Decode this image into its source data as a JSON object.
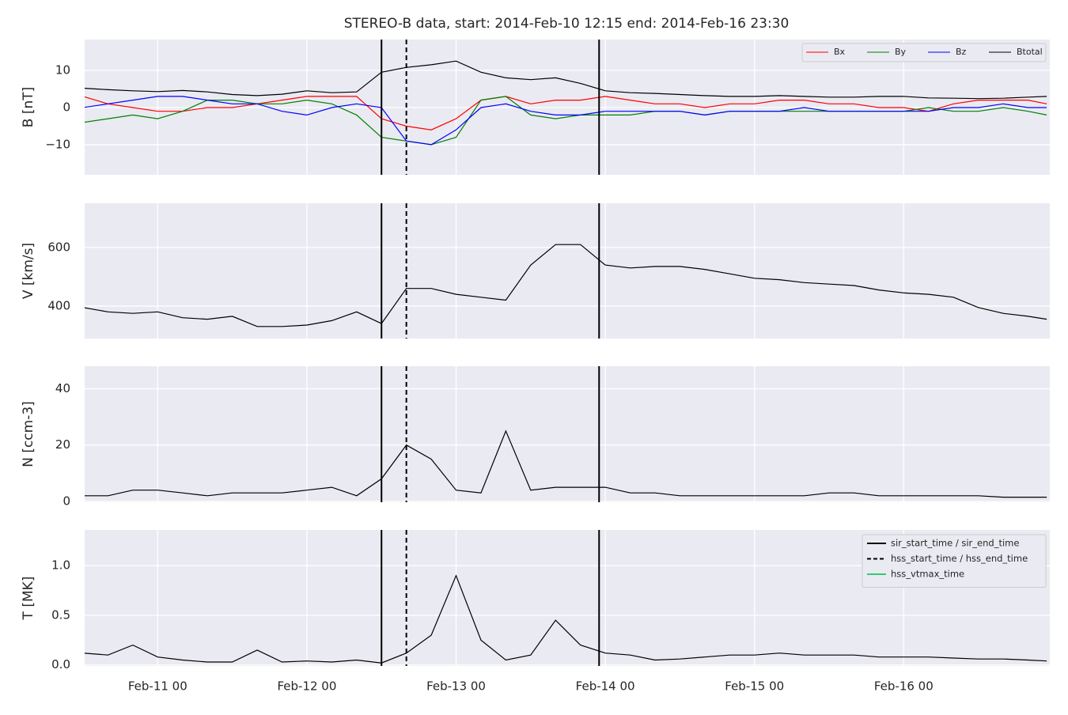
{
  "chart_data": [
    {
      "type": "line",
      "title": "STEREO-B data, start: 2014-Feb-10 12:15  end: 2014-Feb-16 23:30",
      "ylabel": "B [nT]",
      "x": [
        "Feb-10 12",
        "Feb-10 16",
        "Feb-10 20",
        "Feb-11 00",
        "Feb-11 04",
        "Feb-11 08",
        "Feb-11 12",
        "Feb-11 16",
        "Feb-11 20",
        "Feb-12 00",
        "Feb-12 04",
        "Feb-12 08",
        "Feb-12 12",
        "Feb-12 16",
        "Feb-12 20",
        "Feb-13 00",
        "Feb-13 04",
        "Feb-13 08",
        "Feb-13 12",
        "Feb-13 16",
        "Feb-13 20",
        "Feb-14 00",
        "Feb-14 04",
        "Feb-14 08",
        "Feb-14 12",
        "Feb-14 16",
        "Feb-14 20",
        "Feb-15 00",
        "Feb-15 04",
        "Feb-15 08",
        "Feb-15 12",
        "Feb-15 16",
        "Feb-15 20",
        "Feb-16 00",
        "Feb-16 04",
        "Feb-16 08",
        "Feb-16 12",
        "Feb-16 16",
        "Feb-16 20",
        "Feb-16 23"
      ],
      "series": [
        {
          "name": "Bx",
          "color": "#ff0000",
          "values": [
            3,
            1,
            0,
            -1,
            -1,
            0,
            0,
            1,
            2,
            3,
            3,
            3,
            -3,
            -5,
            -6,
            -3,
            2,
            3,
            1,
            2,
            2,
            3,
            2,
            1,
            1,
            0,
            1,
            1,
            2,
            2,
            1,
            1,
            0,
            0,
            -1,
            1,
            2,
            2,
            2,
            1
          ]
        },
        {
          "name": "By",
          "color": "#008000",
          "values": [
            -4,
            -3,
            -2,
            -3,
            -1,
            2,
            2,
            1,
            1,
            2,
            1,
            -2,
            -8,
            -9,
            -10,
            -8,
            2,
            3,
            -2,
            -3,
            -2,
            -2,
            -2,
            -1,
            -1,
            -2,
            -1,
            -1,
            -1,
            -1,
            -1,
            -1,
            -1,
            -1,
            0,
            -1,
            -1,
            0,
            -1,
            -2
          ]
        },
        {
          "name": "Bz",
          "color": "#0000ff",
          "values": [
            0,
            1,
            2,
            3,
            3,
            2,
            1,
            1,
            -1,
            -2,
            0,
            1,
            0,
            -9,
            -10,
            -6,
            0,
            1,
            -1,
            -2,
            -2,
            -1,
            -1,
            -1,
            -1,
            -2,
            -1,
            -1,
            -1,
            0,
            -1,
            -1,
            -1,
            -1,
            -1,
            0,
            0,
            1,
            0,
            0
          ]
        },
        {
          "name": "Btotal",
          "color": "#000000",
          "values": [
            5.2,
            4.8,
            4.5,
            4.3,
            4.6,
            4.2,
            3.5,
            3.2,
            3.6,
            4.5,
            4.0,
            4.2,
            9.5,
            10.8,
            11.5,
            12.5,
            9.5,
            8.0,
            7.5,
            8.0,
            6.5,
            4.5,
            4.0,
            3.8,
            3.5,
            3.2,
            3.0,
            3.0,
            3.2,
            3.0,
            2.8,
            2.8,
            3.0,
            3.0,
            2.6,
            2.5,
            2.4,
            2.5,
            2.8,
            3.0
          ]
        }
      ],
      "xlim": [
        "Feb-10 12:15",
        "Feb-16 23:30"
      ],
      "xticks": [
        "Feb-11 00",
        "Feb-12 00",
        "Feb-13 00",
        "Feb-14 00",
        "Feb-15 00",
        "Feb-16 00"
      ],
      "ylim": [
        -18.1,
        18.3
      ],
      "yticks": [
        {
          "value": -10,
          "label": "−10"
        },
        0,
        10
      ],
      "grid": true,
      "legend": "upper right"
    },
    {
      "type": "line",
      "ylabel": "V [km/s]",
      "color": "#000000",
      "x": [
        "Feb-10 12",
        "Feb-10 16",
        "Feb-10 20",
        "Feb-11 00",
        "Feb-11 04",
        "Feb-11 08",
        "Feb-11 12",
        "Feb-11 16",
        "Feb-11 20",
        "Feb-12 00",
        "Feb-12 04",
        "Feb-12 08",
        "Feb-12 12",
        "Feb-12 16",
        "Feb-12 20",
        "Feb-13 00",
        "Feb-13 04",
        "Feb-13 08",
        "Feb-13 12",
        "Feb-13 16",
        "Feb-13 20",
        "Feb-14 00",
        "Feb-14 04",
        "Feb-14 08",
        "Feb-14 12",
        "Feb-14 16",
        "Feb-14 20",
        "Feb-15 00",
        "Feb-15 04",
        "Feb-15 08",
        "Feb-15 12",
        "Feb-15 16",
        "Feb-15 20",
        "Feb-16 00",
        "Feb-16 04",
        "Feb-16 08",
        "Feb-16 12",
        "Feb-16 16",
        "Feb-16 20",
        "Feb-16 23"
      ],
      "values": [
        395,
        380,
        375,
        380,
        360,
        355,
        365,
        330,
        330,
        335,
        350,
        380,
        340,
        460,
        460,
        440,
        430,
        420,
        540,
        610,
        610,
        540,
        530,
        535,
        535,
        525,
        510,
        495,
        490,
        480,
        475,
        470,
        455,
        445,
        440,
        430,
        395,
        375,
        365,
        355
      ],
      "xlim": [
        "Feb-10 12:15",
        "Feb-16 23:30"
      ],
      "xticks": [
        "Feb-11 00",
        "Feb-12 00",
        "Feb-13 00",
        "Feb-14 00",
        "Feb-15 00",
        "Feb-16 00"
      ],
      "ylim": [
        289,
        751
      ],
      "yticks": [
        400,
        600
      ],
      "grid": true
    },
    {
      "type": "line",
      "ylabel": "N [ccm-3]",
      "color": "#000000",
      "x": [
        "Feb-10 12",
        "Feb-10 16",
        "Feb-10 20",
        "Feb-11 00",
        "Feb-11 04",
        "Feb-11 08",
        "Feb-11 12",
        "Feb-11 16",
        "Feb-11 20",
        "Feb-12 00",
        "Feb-12 04",
        "Feb-12 08",
        "Feb-12 12",
        "Feb-12 16",
        "Feb-12 20",
        "Feb-13 00",
        "Feb-13 04",
        "Feb-13 08",
        "Feb-13 12",
        "Feb-13 16",
        "Feb-13 20",
        "Feb-14 00",
        "Feb-14 04",
        "Feb-14 08",
        "Feb-14 12",
        "Feb-14 16",
        "Feb-14 20",
        "Feb-15 00",
        "Feb-15 04",
        "Feb-15 08",
        "Feb-15 12",
        "Feb-15 16",
        "Feb-15 20",
        "Feb-16 00",
        "Feb-16 04",
        "Feb-16 08",
        "Feb-16 12",
        "Feb-16 16",
        "Feb-16 20",
        "Feb-16 23"
      ],
      "values": [
        2,
        2,
        4,
        4,
        3,
        2,
        3,
        3,
        3,
        4,
        5,
        2,
        8,
        20,
        15,
        4,
        3,
        25,
        4,
        5,
        5,
        5,
        3,
        3,
        2,
        2,
        2,
        2,
        2,
        2,
        3,
        3,
        2,
        2,
        2,
        2,
        2,
        1.5,
        1.5,
        1.5
      ],
      "xlim": [
        "Feb-10 12:15",
        "Feb-16 23:30"
      ],
      "xticks": [
        "Feb-11 00",
        "Feb-12 00",
        "Feb-13 00",
        "Feb-14 00",
        "Feb-15 00",
        "Feb-16 00"
      ],
      "ylim": [
        -0.3,
        48
      ],
      "yticks": [
        0,
        20,
        40
      ],
      "grid": true
    },
    {
      "type": "line",
      "ylabel": "T [MK]",
      "color": "#000000",
      "x": [
        "Feb-10 12",
        "Feb-10 16",
        "Feb-10 20",
        "Feb-11 00",
        "Feb-11 04",
        "Feb-11 08",
        "Feb-11 12",
        "Feb-11 16",
        "Feb-11 20",
        "Feb-12 00",
        "Feb-12 04",
        "Feb-12 08",
        "Feb-12 12",
        "Feb-12 16",
        "Feb-12 20",
        "Feb-13 00",
        "Feb-13 04",
        "Feb-13 08",
        "Feb-13 12",
        "Feb-13 16",
        "Feb-13 20",
        "Feb-14 00",
        "Feb-14 04",
        "Feb-14 08",
        "Feb-14 12",
        "Feb-14 16",
        "Feb-14 20",
        "Feb-15 00",
        "Feb-15 04",
        "Feb-15 08",
        "Feb-15 12",
        "Feb-15 16",
        "Feb-15 20",
        "Feb-16 00",
        "Feb-16 04",
        "Feb-16 08",
        "Feb-16 12",
        "Feb-16 16",
        "Feb-16 20",
        "Feb-16 23"
      ],
      "values": [
        0.12,
        0.1,
        0.2,
        0.08,
        0.05,
        0.03,
        0.03,
        0.15,
        0.03,
        0.04,
        0.03,
        0.05,
        0.02,
        0.12,
        0.3,
        0.9,
        0.25,
        0.05,
        0.1,
        0.45,
        0.2,
        0.12,
        0.1,
        0.05,
        0.06,
        0.08,
        0.1,
        0.1,
        0.12,
        0.1,
        0.1,
        0.1,
        0.08,
        0.08,
        0.08,
        0.07,
        0.06,
        0.06,
        0.05,
        0.04
      ],
      "xlim": [
        "Feb-10 12:15",
        "Feb-16 23:30"
      ],
      "xticks": [
        "Feb-11 00",
        "Feb-12 00",
        "Feb-13 00",
        "Feb-14 00",
        "Feb-15 00",
        "Feb-16 00"
      ],
      "ylim": [
        -0.01,
        1.36
      ],
      "yticks": [
        {
          "value": 0,
          "label": "0.0"
        },
        0.5,
        {
          "value": 1,
          "label": "1.0"
        }
      ],
      "grid": true,
      "legend": "upper right",
      "events": [
        {
          "name": "sir_start_time / sir_end_time",
          "color": "#000000",
          "style": "solid",
          "x": [
            "Feb-12 12",
            "Feb-13 23"
          ]
        },
        {
          "name": "hss_start_time / hss_end_time",
          "color": "#000000",
          "style": "dashed",
          "x": [
            "Feb-12 16"
          ]
        },
        {
          "name": "hss_vtmax_time",
          "color": "#2ecc71",
          "style": "solid",
          "x": []
        }
      ]
    }
  ]
}
